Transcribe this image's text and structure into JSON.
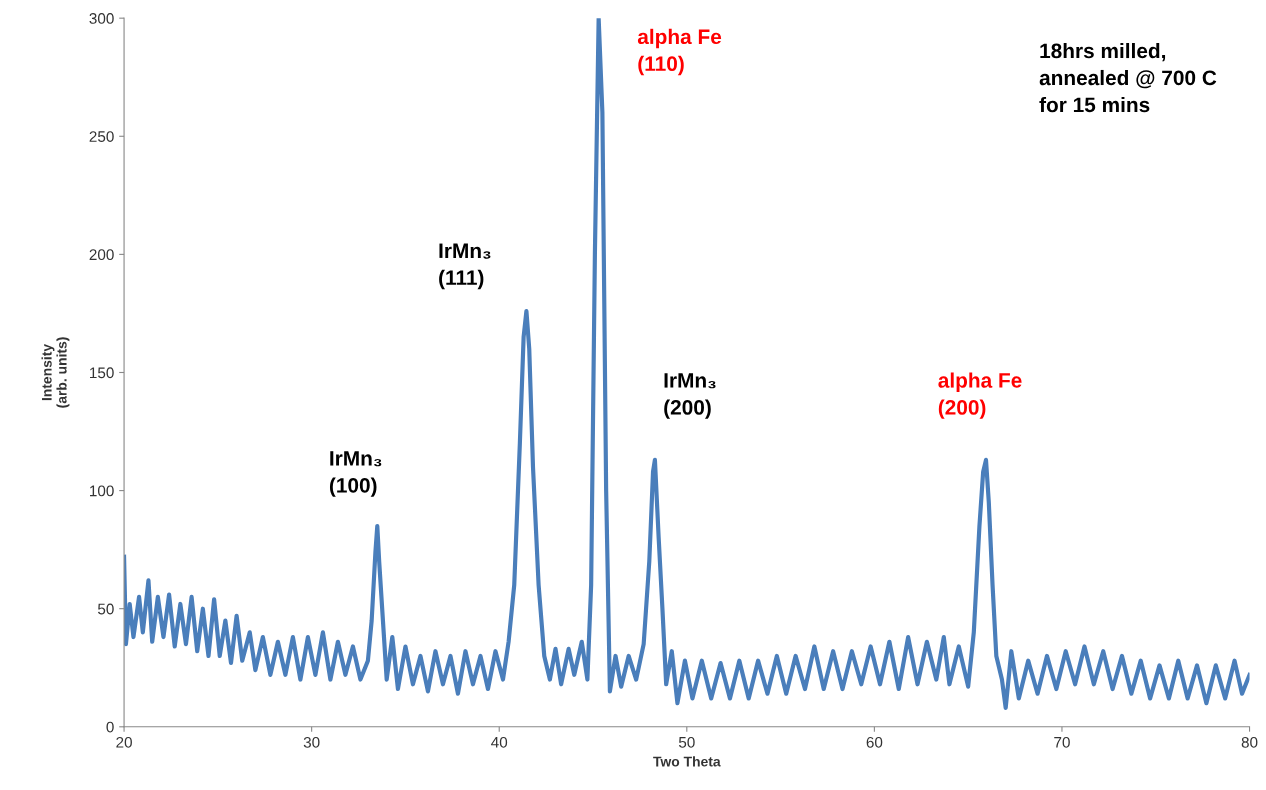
{
  "chart_data": {
    "type": "line",
    "xlabel": "Two Theta",
    "ylabel": "Intensity\n(arb. units)",
    "xlim": [
      20,
      80
    ],
    "xticks": [
      20,
      30,
      40,
      50,
      60,
      70,
      80
    ],
    "ylim": [
      0,
      300
    ],
    "yticks": [
      0,
      50,
      100,
      150,
      200,
      250,
      300
    ],
    "grid": false,
    "legend": false,
    "marker": "none",
    "line_style": "solid",
    "x": [
      20.0,
      20.1,
      20.3,
      20.5,
      20.8,
      21.0,
      21.3,
      21.5,
      21.8,
      22.1,
      22.4,
      22.7,
      23.0,
      23.3,
      23.6,
      23.9,
      24.2,
      24.5,
      24.8,
      25.1,
      25.4,
      25.7,
      26.0,
      26.3,
      26.7,
      27.0,
      27.4,
      27.8,
      28.2,
      28.6,
      29.0,
      29.4,
      29.8,
      30.2,
      30.6,
      31.0,
      31.4,
      31.8,
      32.2,
      32.6,
      33.0,
      33.2,
      33.4,
      33.5,
      33.6,
      33.8,
      34.0,
      34.3,
      34.6,
      35.0,
      35.4,
      35.8,
      36.2,
      36.6,
      37.0,
      37.4,
      37.8,
      38.2,
      38.6,
      39.0,
      39.4,
      39.8,
      40.2,
      40.5,
      40.8,
      41.1,
      41.3,
      41.45,
      41.6,
      41.8,
      42.1,
      42.4,
      42.7,
      43.0,
      43.3,
      43.7,
      44.0,
      44.4,
      44.7,
      44.9,
      45.1,
      45.3,
      45.5,
      45.7,
      45.9,
      46.2,
      46.5,
      46.9,
      47.3,
      47.7,
      48.0,
      48.2,
      48.3,
      48.5,
      48.7,
      48.9,
      49.2,
      49.5,
      49.9,
      50.3,
      50.8,
      51.3,
      51.8,
      52.3,
      52.8,
      53.3,
      53.8,
      54.3,
      54.8,
      55.3,
      55.8,
      56.3,
      56.8,
      57.3,
      57.8,
      58.3,
      58.8,
      59.3,
      59.8,
      60.3,
      60.8,
      61.3,
      61.8,
      62.3,
      62.8,
      63.3,
      63.7,
      64.0,
      64.5,
      65.0,
      65.3,
      65.6,
      65.8,
      65.95,
      66.1,
      66.3,
      66.5,
      66.8,
      67.0,
      67.3,
      67.7,
      68.2,
      68.7,
      69.2,
      69.7,
      70.2,
      70.7,
      71.2,
      71.7,
      72.2,
      72.7,
      73.2,
      73.7,
      74.2,
      74.7,
      75.2,
      75.7,
      76.2,
      76.7,
      77.2,
      77.7,
      78.2,
      78.7,
      79.2,
      79.6,
      80.0
    ],
    "series": [
      {
        "color": "#4a7ebb",
        "values": [
          72,
          35,
          52,
          38,
          55,
          40,
          62,
          36,
          55,
          38,
          56,
          34,
          52,
          35,
          55,
          32,
          50,
          30,
          54,
          30,
          45,
          27,
          47,
          28,
          40,
          24,
          38,
          22,
          36,
          22,
          38,
          20,
          38,
          22,
          40,
          20,
          36,
          22,
          34,
          20,
          28,
          45,
          74,
          85,
          70,
          45,
          20,
          38,
          16,
          34,
          18,
          30,
          15,
          32,
          18,
          30,
          14,
          32,
          18,
          30,
          16,
          32,
          20,
          36,
          60,
          120,
          165,
          176,
          160,
          110,
          60,
          30,
          20,
          33,
          18,
          33,
          22,
          36,
          20,
          60,
          200,
          300,
          260,
          100,
          15,
          30,
          17,
          30,
          20,
          35,
          70,
          108,
          113,
          80,
          50,
          18,
          32,
          10,
          28,
          12,
          28,
          12,
          27,
          12,
          28,
          12,
          28,
          14,
          30,
          14,
          30,
          16,
          34,
          16,
          32,
          16,
          32,
          18,
          34,
          18,
          36,
          16,
          38,
          18,
          36,
          20,
          38,
          18,
          34,
          17,
          40,
          85,
          108,
          113,
          95,
          60,
          30,
          20,
          8,
          32,
          12,
          28,
          14,
          30,
          16,
          32,
          18,
          34,
          18,
          32,
          16,
          30,
          14,
          28,
          12,
          26,
          12,
          28,
          12,
          26,
          10,
          26,
          12,
          28,
          14,
          22
        ]
      }
    ],
    "annotations": [
      "IrMn₃\n(100)",
      "IrMn₃\n(111)",
      "alpha Fe\n(110)",
      "IrMn₃\n(200)",
      "alpha Fe\n(200)",
      "18hrs milled,\nannealed @ 700 C\nfor 15 mins"
    ]
  }
}
